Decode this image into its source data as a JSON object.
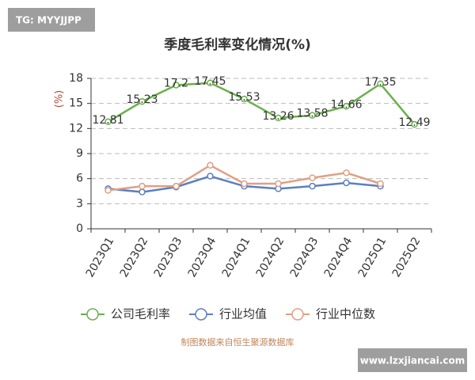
{
  "watermark": "TG: MYYJJPP",
  "site": "www.lzxjiancai.com",
  "chart_data": {
    "type": "line",
    "title": "季度毛利率变化情况(%)",
    "y_label": "(%)",
    "source": "制图数据来自恒生聚源数据库",
    "categories": [
      "2023Q1",
      "2023Q2",
      "2023Q3",
      "2023Q4",
      "2024Q1",
      "2024Q2",
      "2024Q3",
      "2024Q4",
      "2025Q1",
      "2025Q2"
    ],
    "series": [
      {
        "name": "公司毛利率",
        "color": "#6ab04c",
        "values": [
          12.81,
          15.23,
          17.2,
          17.45,
          15.53,
          13.26,
          13.58,
          14.66,
          17.35,
          12.49
        ]
      },
      {
        "name": "行业均值",
        "color": "#5b7fc4",
        "values": [
          4.8,
          4.4,
          5.0,
          6.3,
          5.1,
          4.8,
          5.1,
          5.5,
          5.1,
          null
        ]
      },
      {
        "name": "行业中位数",
        "color": "#e0a084",
        "values": [
          4.6,
          5.1,
          5.1,
          7.6,
          5.4,
          5.4,
          6.1,
          6.7,
          5.4,
          null
        ]
      }
    ],
    "data_labels_series": 0,
    "ylim": [
      0,
      18
    ],
    "yticks": [
      0,
      3,
      6,
      9,
      12,
      15,
      18
    ],
    "grid": true
  }
}
